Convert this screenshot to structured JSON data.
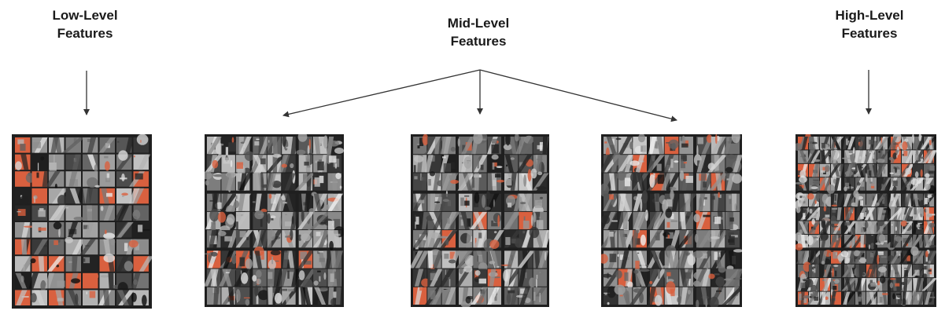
{
  "labels": {
    "low": {
      "line1": "Low-Level",
      "line2": "Features"
    },
    "mid": {
      "line1": "Mid-Level",
      "line2": "Features"
    },
    "high": {
      "line1": "High-Level",
      "line2": "Features"
    }
  },
  "colors": {
    "accent": "#d9603f",
    "frame": "#1f1f1f",
    "arrow": "#333333"
  },
  "panels": [
    {
      "name": "low-level-feature-grid",
      "style": "low"
    },
    {
      "name": "mid-level-feature-grid-1",
      "style": "mid1"
    },
    {
      "name": "mid-level-feature-grid-2",
      "style": "mid2"
    },
    {
      "name": "mid-level-feature-grid-3",
      "style": "mid3"
    },
    {
      "name": "high-level-feature-grid",
      "style": "high"
    }
  ]
}
